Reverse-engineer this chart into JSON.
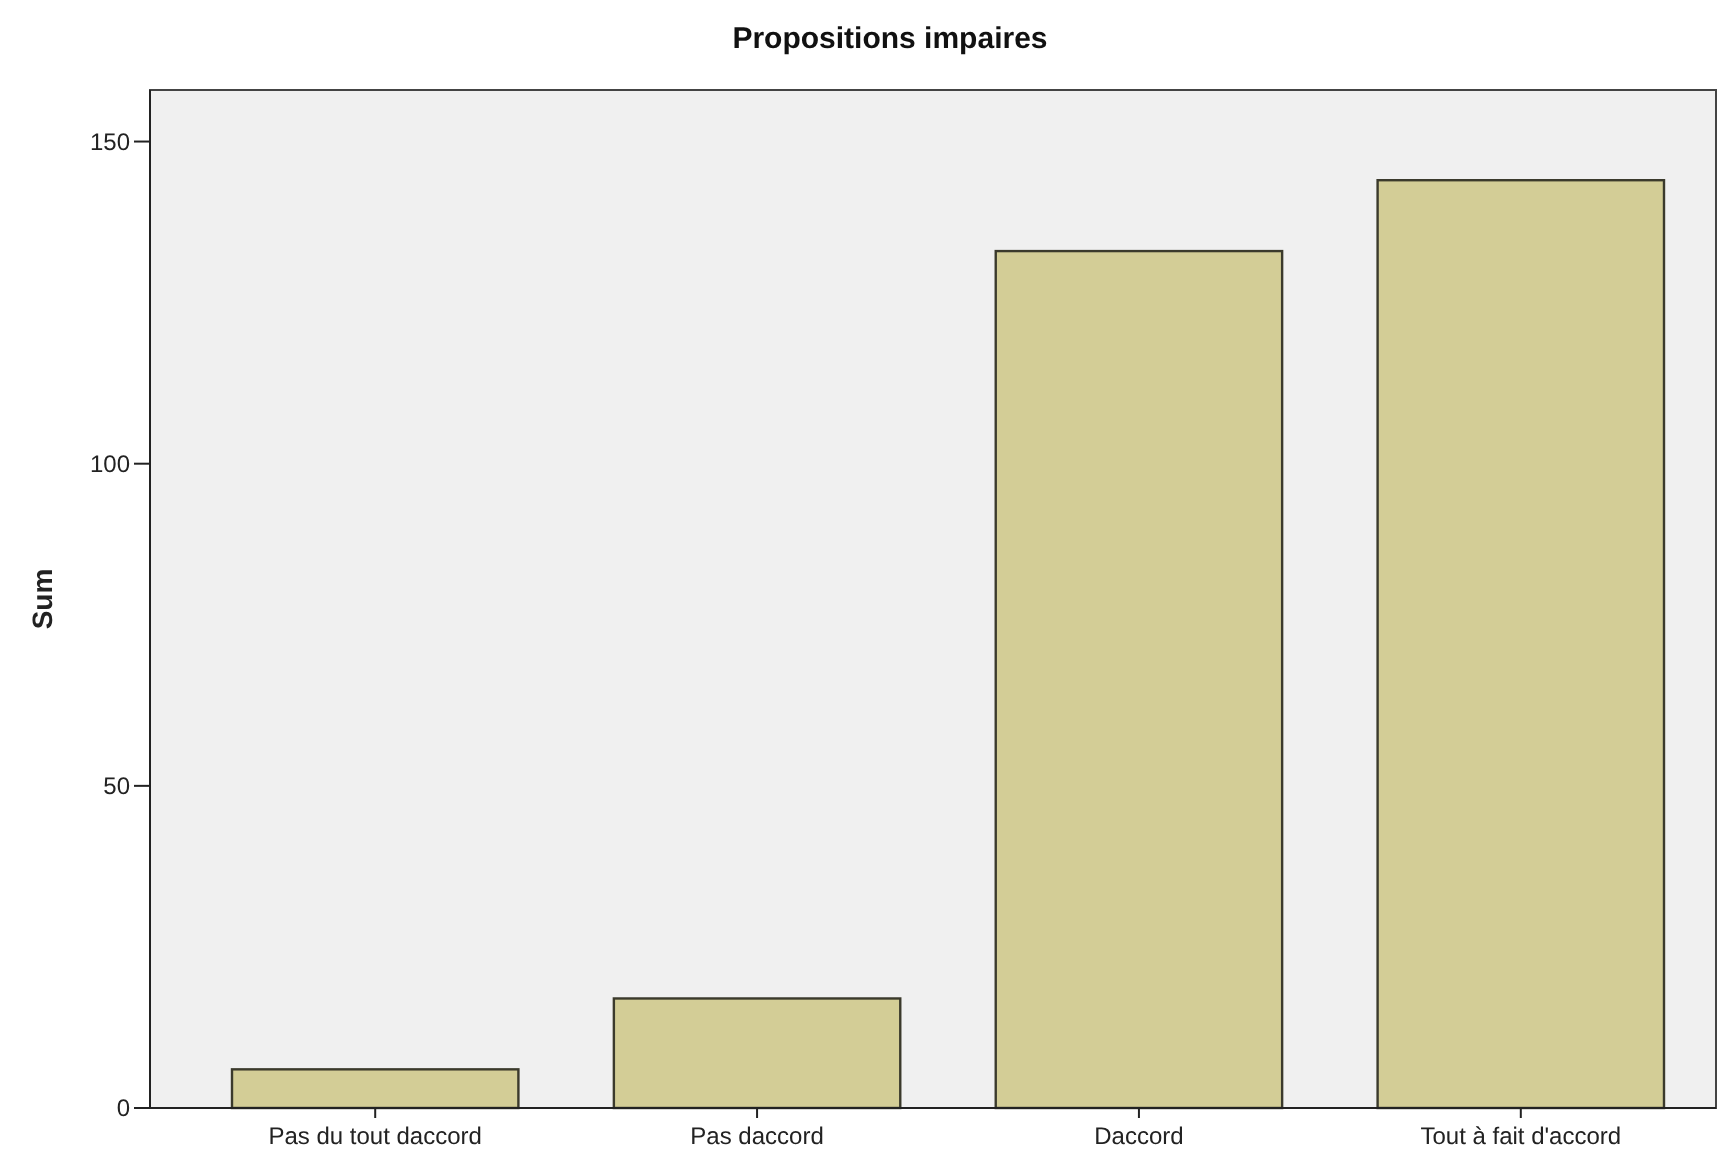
{
  "chart_data": {
    "type": "bar",
    "title": "Propositions impaires",
    "ylabel": "Sum",
    "categories": [
      "Pas du tout daccord",
      "Pas daccord",
      "Daccord",
      "Tout à fait d'accord"
    ],
    "values": [
      6,
      17,
      133,
      144
    ],
    "color": "#d3cd96",
    "ylim": [
      0,
      158
    ],
    "yticks": [
      0,
      50,
      100,
      150
    ],
    "grid": false
  }
}
